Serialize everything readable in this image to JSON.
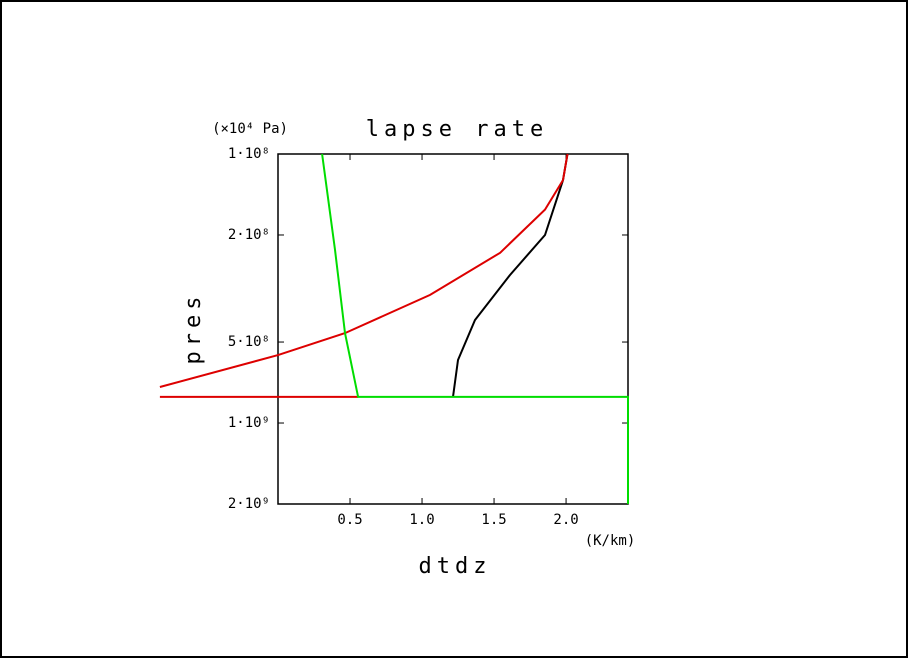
{
  "chart_data": {
    "type": "line",
    "title": "lapse rate",
    "y_unit": "(×10⁴ Pa)",
    "x_unit": "(K/km)",
    "xlabel": "dtdz",
    "ylabel": "pres",
    "xlim": [
      0,
      2.43
    ],
    "xticks": [
      0.5,
      {
        "value": 1,
        "label": "1.0"
      },
      1.5,
      {
        "value": 2,
        "label": "2.0"
      }
    ],
    "ylim": [
      100000000,
      2000000000
    ],
    "ylog": true,
    "yreversed": true,
    "yticks": [
      {
        "value": 100000000,
        "label": "1·10⁸"
      },
      {
        "value": 200000000,
        "label": "2·10⁸"
      },
      {
        "value": 500000000,
        "label": "5·10⁸"
      },
      {
        "value": 1000000000,
        "label": "1·10⁹"
      },
      {
        "value": 2000000000,
        "label": "2·10⁹"
      }
    ],
    "grid": false,
    "series": [
      {
        "color": "#000000",
        "x": [
          1.215,
          1.25,
          1.368,
          1.61,
          1.854,
          1.979,
          2.01
        ],
        "values": [
          800000000,
          583000000,
          414000000,
          282000000,
          200000000,
          125000000,
          100000000
        ]
      },
      {
        "color": "#dd0000",
        "x": [
          -0.82,
          0,
          0.465,
          1.056,
          1.542,
          1.854,
          1.979,
          2.01,
          null,
          -0.82,
          0.556
        ],
        "values": [
          735000000,
          559000000,
          463000000,
          334000000,
          233000000,
          161000000,
          125000000,
          100000000,
          null,
          800000000,
          800000000
        ]
      },
      {
        "color": "#00dd00",
        "x": [
          0.306,
          0.396,
          0.465,
          0.556,
          2.43,
          2.43
        ],
        "values": [
          100000000,
          227000000,
          463000000,
          800000000,
          800000000,
          2000000000
        ]
      }
    ]
  }
}
